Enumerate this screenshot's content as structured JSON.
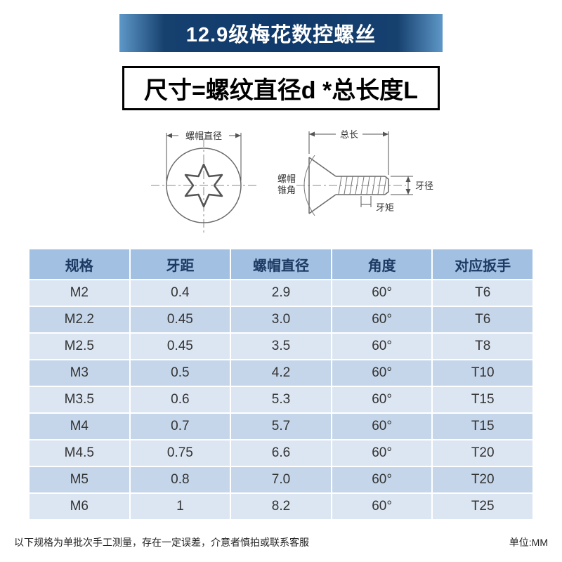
{
  "banner": {
    "title": "12.9级梅花数控螺丝"
  },
  "formula": {
    "text": "尺寸=螺纹直径d *总长度L"
  },
  "diagram": {
    "cap_diameter_label": "螺帽直径",
    "total_length_label": "总长",
    "cone_angle_line1": "螺帽",
    "cone_angle_line2": "锥角",
    "thread_diameter_label": "牙径",
    "thread_pitch_label": "牙矩"
  },
  "table": {
    "headers": [
      "规格",
      "牙距",
      "螺帽直径",
      "角度",
      "对应扳手"
    ],
    "rows": [
      [
        "M2",
        "0.4",
        "2.9",
        "60°",
        "T6"
      ],
      [
        "M2.2",
        "0.45",
        "3.0",
        "60°",
        "T6"
      ],
      [
        "M2.5",
        "0.45",
        "3.5",
        "60°",
        "T8"
      ],
      [
        "M3",
        "0.5",
        "4.2",
        "60°",
        "T10"
      ],
      [
        "M3.5",
        "0.6",
        "5.3",
        "60°",
        "T15"
      ],
      [
        "M4",
        "0.7",
        "5.7",
        "60°",
        "T15"
      ],
      [
        "M4.5",
        "0.75",
        "6.6",
        "60°",
        "T20"
      ],
      [
        "M5",
        "0.8",
        "7.0",
        "60°",
        "T20"
      ],
      [
        "M6",
        "1",
        "8.2",
        "60°",
        "T25"
      ]
    ]
  },
  "footer": {
    "note": "以下规格为单批次手工测量，存在一定误差，介意者慎拍或联系客服",
    "unit": "单位:MM"
  },
  "colors": {
    "banner_blue": "#0f3a6b",
    "table_border": "#20406a",
    "header_bg": "#a2c0e2",
    "row_light": "#dce6f2",
    "row_dark": "#c6d6ea"
  }
}
